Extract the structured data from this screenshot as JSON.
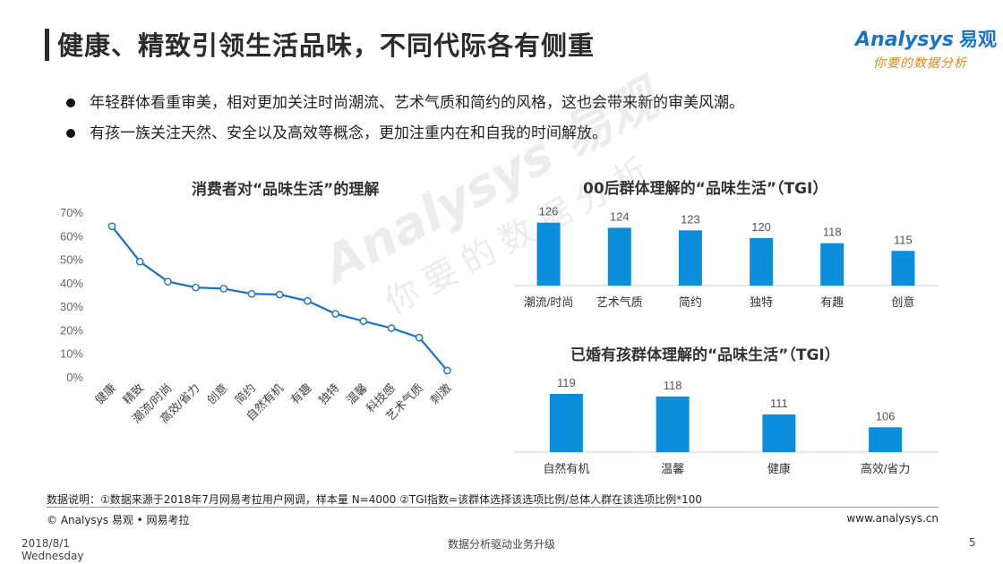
{
  "page": {
    "title": "健康、精致引领生活品味，不同代际各有侧重",
    "logo_text": "Analysys",
    "logo_cn": "易观",
    "logo_sub": "你要的数据分析",
    "bullets": [
      "年轻群体看重审美，相对更加关注时尚潮流、艺术气质和简约的风格，这也会带来新的审美风潮。",
      "有孩一族关注天然、安全以及高效等概念，更加注重内在和自我的时间解放。"
    ],
    "watermark_1": "Analysys 易观",
    "watermark_2": "你要的数据分析",
    "note": "数据说明：①数据来源于2018年7月网易考拉用户网调，样本量 N=4000 ②TGI指数=该群体选择该选项比例/总体人群在该选项比例*100",
    "copyright": "© Analysys 易观 • 网易考拉",
    "website": "www.analysys.cn",
    "date_line1": "2018/8/1",
    "date_line2": "Wednesday",
    "footer_center": "数据分析驱动业务升级",
    "page_number": "5",
    "accent_color": "#1a73c7",
    "bar_color": "#0b8fdc"
  },
  "chart_data": [
    {
      "type": "line",
      "title": "消费者对“品味生活”的理解",
      "categories": [
        "健康",
        "精致",
        "潮流/时尚",
        "高效/省力",
        "创意",
        "简约",
        "自然有机",
        "有趣",
        "独特",
        "温馨",
        "科技感",
        "艺术气质",
        "刺激"
      ],
      "values": [
        64,
        49,
        40.5,
        38,
        37.5,
        35.3,
        35,
        32.3,
        26.8,
        23.7,
        20.7,
        16.7,
        2.7
      ],
      "yticks": [
        "0%",
        "10%",
        "20%",
        "30%",
        "40%",
        "50%",
        "60%",
        "70%"
      ],
      "ylim": [
        0,
        70
      ],
      "color": "#1a73c7"
    },
    {
      "type": "bar",
      "title": "00后群体理解的“品味生活”（TGI）",
      "categories": [
        "潮流/时尚",
        "艺术气质",
        "简约",
        "独特",
        "有趣",
        "创意"
      ],
      "values": [
        126,
        124,
        123,
        120,
        118,
        115
      ]
    },
    {
      "type": "bar",
      "title": "已婚有孩群体理解的“品味生活”（TGI）",
      "categories": [
        "自然有机",
        "温馨",
        "健康",
        "高效/省力"
      ],
      "values": [
        119,
        118,
        111,
        106
      ]
    }
  ]
}
